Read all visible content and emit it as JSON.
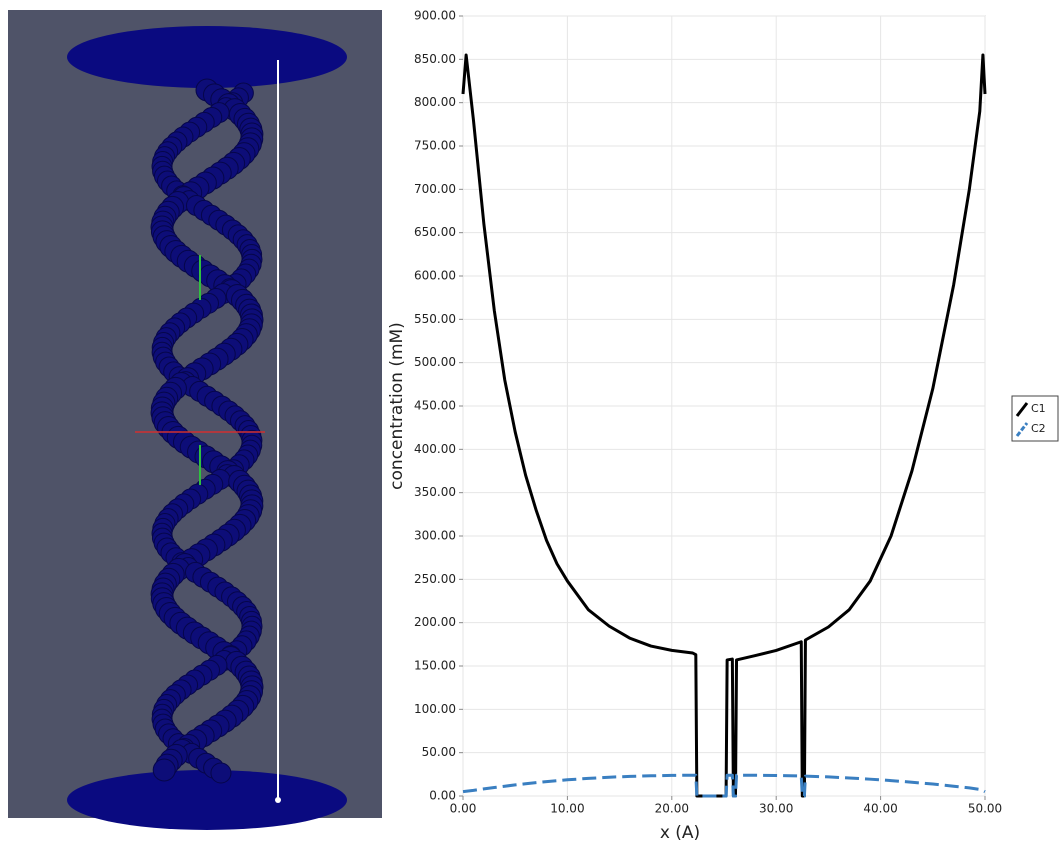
{
  "chart_data": {
    "type": "line",
    "x_label": "x (A)",
    "y_label": "concentration (mM)",
    "x": [
      0,
      0.3,
      1,
      2,
      3,
      4,
      5,
      6,
      7,
      8,
      9,
      10,
      12,
      14,
      16,
      18,
      20,
      22,
      22.3,
      22.4,
      25.2,
      25.3,
      25.8,
      25.9,
      26.1,
      26.2,
      28,
      30,
      32.4,
      32.5,
      32.7,
      32.8,
      35,
      37,
      39,
      41,
      43,
      45,
      47,
      48.5,
      49.5,
      49.8,
      50
    ],
    "series": [
      {
        "name": "C1",
        "color": "#000000",
        "line_style": "solid",
        "values": [
          810,
          855,
          780,
          660,
          560,
          480,
          420,
          370,
          330,
          295,
          268,
          248,
          215,
          196,
          182,
          173,
          168,
          165,
          163,
          0,
          0,
          157,
          158,
          0,
          0,
          157,
          162,
          168,
          178,
          0,
          0,
          180,
          195,
          215,
          248,
          300,
          375,
          470,
          590,
          700,
          790,
          855,
          810
        ]
      },
      {
        "name": "C2",
        "color": "#3a7fc1",
        "line_style": "dashed",
        "values": [
          5,
          5.5,
          6.5,
          8.2,
          9.8,
          11.3,
          12.8,
          14.1,
          15.4,
          16.6,
          17.6,
          18.7,
          20.3,
          21.7,
          22.6,
          23.3,
          23.8,
          24,
          24,
          0,
          0,
          24,
          24,
          0,
          0,
          24,
          23.9,
          23.7,
          23.2,
          0,
          0,
          23,
          22,
          20.8,
          19.4,
          17.8,
          15.9,
          13.8,
          11.3,
          9.4,
          7.6,
          6.3,
          5
        ]
      }
    ],
    "xlim": [
      0,
      50
    ],
    "xticks": [
      {
        "value": 0,
        "label": "0.00"
      },
      {
        "value": 10,
        "label": "10.00"
      },
      {
        "value": 20,
        "label": "20.00"
      },
      {
        "value": 30,
        "label": "30.00"
      },
      {
        "value": 40,
        "label": "40.00"
      },
      {
        "value": 50,
        "label": "50.00"
      }
    ],
    "ylim": [
      0,
      900
    ],
    "yticks": [
      {
        "value": 0,
        "label": "0.00"
      },
      {
        "value": 50,
        "label": "50.00"
      },
      {
        "value": 100,
        "label": "100.00"
      },
      {
        "value": 150,
        "label": "150.00"
      },
      {
        "value": 200,
        "label": "200.00"
      },
      {
        "value": 250,
        "label": "250.00"
      },
      {
        "value": 300,
        "label": "300.00"
      },
      {
        "value": 350,
        "label": "350.00"
      },
      {
        "value": 400,
        "label": "400.00"
      },
      {
        "value": 450,
        "label": "450.00"
      },
      {
        "value": 500,
        "label": "500.00"
      },
      {
        "value": 550,
        "label": "550.00"
      },
      {
        "value": 600,
        "label": "600.00"
      },
      {
        "value": 650,
        "label": "650.00"
      },
      {
        "value": 700,
        "label": "700.00"
      },
      {
        "value": 750,
        "label": "750.00"
      },
      {
        "value": 800,
        "label": "800.00"
      },
      {
        "value": 850,
        "label": "850.00"
      },
      {
        "value": 900,
        "label": "900.00"
      }
    ],
    "grid": true,
    "legend": "right"
  }
}
